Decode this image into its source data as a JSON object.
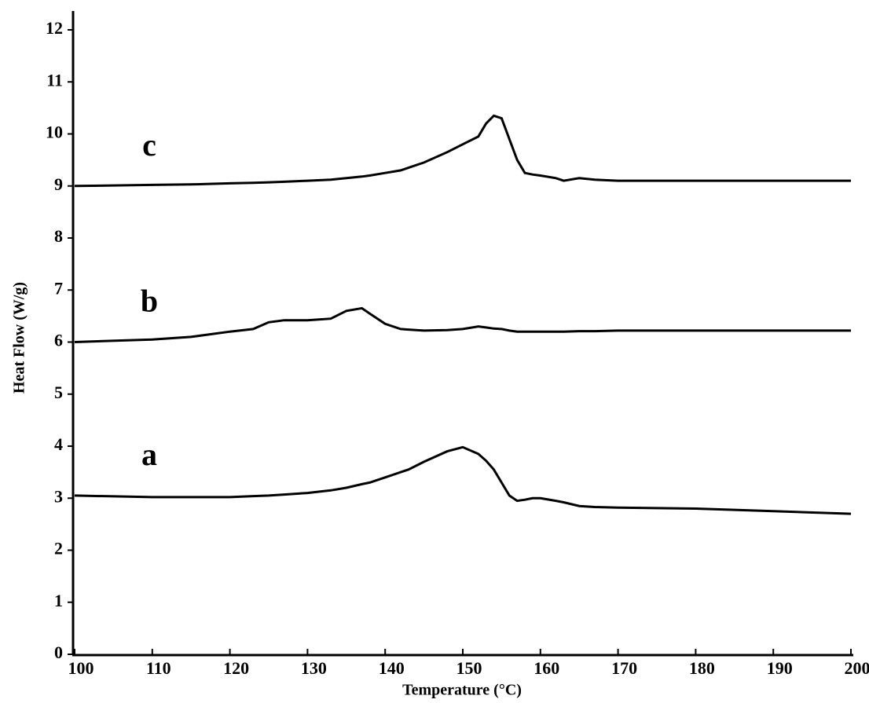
{
  "chart_data": {
    "type": "line",
    "xlabel": "Temperature (°C)",
    "ylabel": "Heat Flow (W/g)",
    "x": [
      100,
      110,
      115,
      120,
      123,
      125,
      127,
      130,
      133,
      135,
      137,
      138,
      140,
      142,
      143,
      145,
      148,
      150,
      152,
      153,
      154,
      155,
      156,
      157,
      158,
      159,
      160,
      162,
      163,
      165,
      167,
      170,
      180,
      190,
      200
    ],
    "series": [
      {
        "name": "a",
        "color": "#000000",
        "values": [
          3.05,
          3.02,
          3.02,
          3.02,
          3.04,
          3.05,
          3.07,
          3.1,
          3.15,
          3.2,
          3.27,
          3.3,
          3.4,
          3.5,
          3.55,
          3.7,
          3.9,
          3.98,
          3.85,
          3.72,
          3.55,
          3.3,
          3.05,
          2.95,
          2.97,
          3.0,
          3.0,
          2.95,
          2.92,
          2.85,
          2.83,
          2.82,
          2.8,
          2.75,
          2.7
        ]
      },
      {
        "name": "b",
        "color": "#000000",
        "values": [
          6.0,
          6.05,
          6.1,
          6.2,
          6.25,
          6.38,
          6.42,
          6.42,
          6.45,
          6.6,
          6.65,
          6.55,
          6.35,
          6.25,
          6.24,
          6.22,
          6.23,
          6.25,
          6.3,
          6.28,
          6.26,
          6.25,
          6.22,
          6.2,
          6.2,
          6.2,
          6.2,
          6.2,
          6.2,
          6.21,
          6.21,
          6.22,
          6.22,
          6.22,
          6.22
        ]
      },
      {
        "name": "c",
        "color": "#000000",
        "values": [
          9.0,
          9.02,
          9.03,
          9.05,
          9.06,
          9.07,
          9.08,
          9.1,
          9.12,
          9.15,
          9.18,
          9.2,
          9.25,
          9.3,
          9.35,
          9.45,
          9.65,
          9.8,
          9.95,
          10.2,
          10.35,
          10.3,
          9.9,
          9.5,
          9.25,
          9.22,
          9.2,
          9.15,
          9.1,
          9.15,
          9.12,
          9.1,
          9.1,
          9.1,
          9.1
        ]
      }
    ],
    "xlim": [
      100,
      200
    ],
    "xticks": [
      100,
      110,
      120,
      130,
      140,
      150,
      160,
      170,
      180,
      190,
      200
    ],
    "ylim": [
      0,
      12
    ],
    "yticks": [
      0,
      1,
      2,
      3,
      4,
      5,
      6,
      7,
      8,
      9,
      10,
      11,
      12
    ]
  }
}
